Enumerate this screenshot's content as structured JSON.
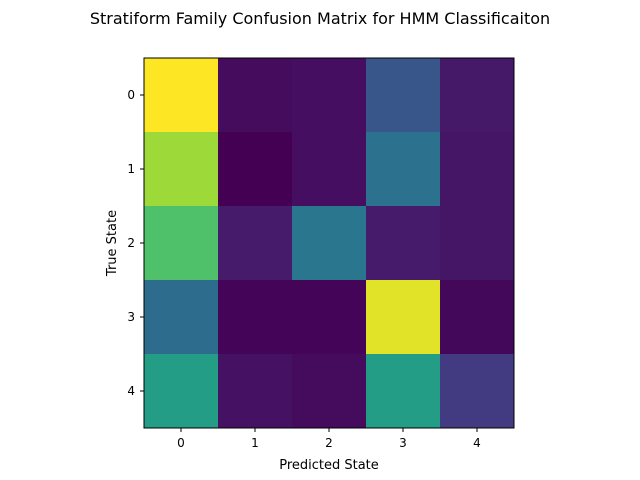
{
  "chart_data": {
    "type": "heatmap",
    "title": "Stratiform Family Confusion Matrix for HMM Classificaiton",
    "xlabel": "Predicted State",
    "ylabel": "True State",
    "x_categories": [
      "0",
      "1",
      "2",
      "3",
      "4"
    ],
    "y_categories": [
      "0",
      "1",
      "2",
      "3",
      "4"
    ],
    "colormap": "viridis",
    "value_range": [
      0,
      1
    ],
    "values": [
      [
        1.0,
        0.03,
        0.04,
        0.27,
        0.07
      ],
      [
        0.86,
        0.0,
        0.04,
        0.38,
        0.06
      ],
      [
        0.72,
        0.08,
        0.4,
        0.08,
        0.06
      ],
      [
        0.36,
        0.01,
        0.01,
        0.96,
        0.02
      ],
      [
        0.56,
        0.05,
        0.03,
        0.56,
        0.18
      ]
    ],
    "grid": false
  }
}
